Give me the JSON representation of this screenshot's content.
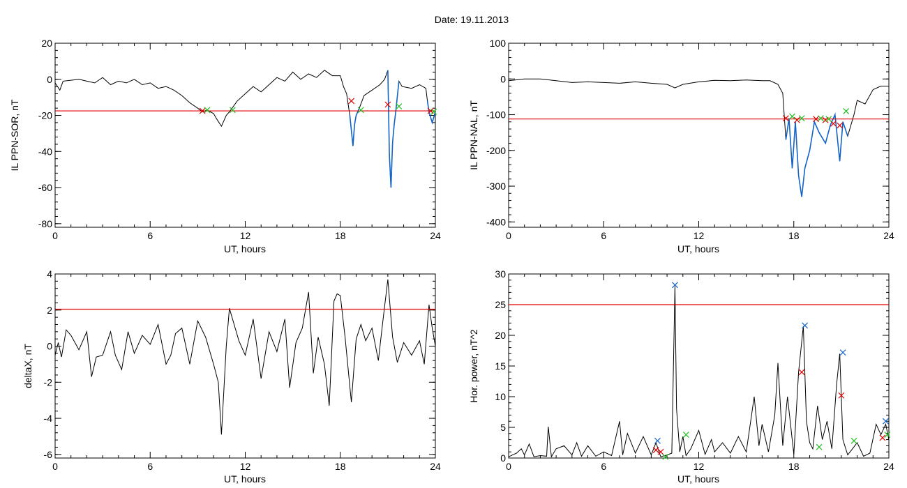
{
  "page": {
    "title": "Date:  19.11.2013"
  },
  "colors": {
    "trace": "#000000",
    "threshold": "#e00000",
    "highlight": "#1464c8",
    "marker_red": "#e00000",
    "marker_green": "#22c022",
    "marker_blue": "#1464c8"
  },
  "chart_data": [
    {
      "id": "sor",
      "type": "line",
      "xlabel": "UT, hours",
      "ylabel": "IL PPN-SOR, nT",
      "xlim": [
        0,
        24
      ],
      "ylim": [
        -82,
        20
      ],
      "xticks": [
        "0",
        "6",
        "12",
        "18",
        "24"
      ],
      "yticks": [
        "-80",
        "-60",
        "-40",
        "-20",
        "0",
        "20"
      ],
      "threshold": -17.5,
      "series": [
        {
          "x": [
            0,
            0.3,
            0.5,
            1,
            1.5,
            2,
            2.5,
            3,
            3.5,
            4,
            4.5,
            5,
            5.5,
            6,
            6.5,
            7,
            7.5,
            8,
            8.5,
            9,
            9.3,
            9.6,
            10,
            10.2,
            10.5,
            10.8,
            11,
            11.5,
            12,
            12.5,
            13,
            13.5,
            14,
            14.5,
            15,
            15.5,
            16,
            16.5,
            17,
            17.5,
            18,
            18.2,
            18.4,
            18.6,
            18.8,
            18.9,
            19,
            19.2,
            19.5,
            20,
            20.5,
            20.8,
            21,
            21.1,
            21.2,
            21.3,
            21.4,
            21.5,
            21.7,
            21.9,
            22.5,
            23,
            23.4,
            23.5,
            23.6,
            23.8,
            24
          ],
          "y": [
            -2,
            -6,
            -1,
            -0.5,
            0,
            -1,
            -2,
            1,
            -3,
            -1,
            -2,
            0,
            -3,
            -2,
            -5,
            -4,
            -6,
            -9,
            -13,
            -16,
            -18,
            -17,
            -19,
            -22,
            -26,
            -20,
            -18,
            -12,
            -8,
            -4,
            -7,
            -3,
            1,
            -1,
            4,
            0,
            3,
            1,
            5,
            2,
            2,
            -4,
            -8,
            -20,
            -37,
            -25,
            -20,
            -16,
            -9,
            -6,
            -3,
            0,
            5,
            -42,
            -60,
            -35,
            -25,
            -18,
            -1,
            -4,
            -5,
            -3,
            -5,
            -12,
            -18,
            -24,
            -18
          ]
        }
      ],
      "highlight_x_ranges": [
        [
          18.6,
          19.4
        ],
        [
          21.0,
          21.8
        ],
        [
          23.5,
          24
        ]
      ],
      "markers": [
        {
          "color": "red",
          "x": [
            9.3,
            18.7,
            21.0,
            23.7
          ],
          "y": [
            -17.5,
            -12,
            -14,
            -17.5
          ]
        },
        {
          "color": "green",
          "x": [
            9.6,
            11.2,
            19.3,
            21.7,
            23.9
          ],
          "y": [
            -17,
            -17,
            -17,
            -15,
            -18
          ]
        }
      ]
    },
    {
      "id": "nal",
      "type": "line",
      "xlabel": "UT, hours",
      "ylabel": "IL PPN-NAL, nT",
      "xlim": [
        0,
        24
      ],
      "ylim": [
        -415,
        100
      ],
      "xticks": [
        "0",
        "6",
        "12",
        "18",
        "24"
      ],
      "yticks": [
        "-400",
        "-300",
        "-200",
        "-100",
        "0",
        "100"
      ],
      "threshold": -112,
      "series": [
        {
          "x": [
            0,
            1,
            2,
            3,
            4,
            5,
            6,
            7,
            8,
            9,
            10,
            10.5,
            11,
            12,
            13,
            14,
            15,
            16,
            16.5,
            17,
            17.3,
            17.5,
            17.7,
            17.9,
            18.1,
            18.3,
            18.5,
            18.7,
            19,
            19.3,
            19.6,
            20,
            20.3,
            20.6,
            20.9,
            21.1,
            21.4,
            21.8,
            22,
            22.5,
            23,
            23.5,
            24
          ],
          "y": [
            -5,
            0,
            0,
            -5,
            -10,
            -8,
            -10,
            -12,
            -8,
            -12,
            -15,
            -25,
            -15,
            -8,
            -4,
            -5,
            -3,
            -5,
            -5,
            -15,
            -40,
            -170,
            -110,
            -250,
            -120,
            -270,
            -330,
            -250,
            -200,
            -120,
            -150,
            -180,
            -130,
            -100,
            -230,
            -120,
            -160,
            -100,
            -60,
            -70,
            -30,
            -20,
            -20
          ]
        }
      ],
      "highlight_x_ranges": [
        [
          17.4,
          21.6
        ]
      ],
      "markers": [
        {
          "color": "red",
          "x": [
            17.5,
            18.2,
            19.4,
            20.0,
            20.5,
            20.9
          ],
          "y": [
            -110,
            -115,
            -112,
            -115,
            -125,
            -130
          ]
        },
        {
          "color": "green",
          "x": [
            17.9,
            18.5,
            19.7,
            20.2,
            21.3
          ],
          "y": [
            -105,
            -110,
            -110,
            -112,
            -90
          ]
        }
      ]
    },
    {
      "id": "deltax",
      "type": "line",
      "xlabel": "UT, hours",
      "ylabel": "deltaX, nT",
      "xlim": [
        0,
        24
      ],
      "ylim": [
        -6.2,
        4
      ],
      "xticks": [
        "0",
        "6",
        "12",
        "18",
        "24"
      ],
      "yticks": [
        "-6",
        "-4",
        "-2",
        "0",
        "2",
        "4"
      ],
      "threshold": 2.05,
      "series": [
        {
          "x": [
            0,
            0.2,
            0.4,
            0.7,
            1,
            1.5,
            2,
            2.3,
            2.6,
            3,
            3.5,
            3.8,
            4.2,
            4.6,
            5,
            5.5,
            6,
            6.5,
            7,
            7.3,
            7.6,
            8,
            8.5,
            9,
            9.5,
            10,
            10.3,
            10.5,
            10.8,
            11,
            11.3,
            11.6,
            12,
            12.5,
            13,
            13.5,
            14,
            14.5,
            14.8,
            15.2,
            15.6,
            16,
            16.3,
            16.6,
            17,
            17.3,
            17.6,
            17.8,
            18,
            18.3,
            18.7,
            19,
            19.3,
            19.6,
            20,
            20.4,
            20.7,
            21,
            21.3,
            21.6,
            22,
            22.5,
            23,
            23.3,
            23.6,
            23.8,
            24
          ],
          "y": [
            -0.5,
            0.2,
            -0.6,
            0.9,
            0.6,
            -0.2,
            0.8,
            -1.7,
            -0.6,
            -0.5,
            0.8,
            -0.5,
            -1.3,
            0.8,
            -0.4,
            0.6,
            0.1,
            1.2,
            -1.0,
            -0.5,
            0.7,
            1.0,
            -1.0,
            1.4,
            0.5,
            -1.0,
            -2.0,
            -4.9,
            0.0,
            2.1,
            1.2,
            0.3,
            -0.5,
            1.5,
            -1.8,
            0.8,
            -0.3,
            1.5,
            -2.3,
            0.2,
            1.0,
            3.0,
            -1.5,
            0.5,
            -1.0,
            -3.3,
            2.5,
            2.9,
            2.8,
            0.5,
            -3.1,
            0.4,
            1.2,
            0.3,
            1.0,
            -0.8,
            1.5,
            3.7,
            0.5,
            -0.9,
            0.2,
            -0.5,
            0.3,
            -1.0,
            2.3,
            1.0,
            0.0
          ]
        }
      ],
      "markers": []
    },
    {
      "id": "power",
      "type": "line",
      "xlabel": "UT, hours",
      "ylabel": "Hor. power, nT^2",
      "xlim": [
        0,
        24
      ],
      "ylim": [
        0,
        30
      ],
      "xticks": [
        "0",
        "6",
        "12",
        "18",
        "24"
      ],
      "yticks": [
        "0",
        "5",
        "10",
        "15",
        "20",
        "25",
        "30"
      ],
      "threshold": 25,
      "series": [
        {
          "x": [
            0,
            0.5,
            0.8,
            1,
            1.3,
            1.6,
            2,
            2.4,
            2.5,
            2.7,
            3,
            3.5,
            4,
            4.3,
            4.6,
            5,
            5.5,
            6,
            6.5,
            7,
            7.2,
            7.5,
            8,
            8.5,
            9,
            9.3,
            9.6,
            10,
            10.3,
            10.5,
            10.6,
            10.8,
            11,
            11.2,
            11.5,
            12,
            12.4,
            12.8,
            13,
            13.5,
            14,
            14.5,
            15,
            15.5,
            15.8,
            16,
            16.4,
            16.8,
            17,
            17.3,
            17.6,
            18,
            18.3,
            18.6,
            18.8,
            19,
            19.2,
            19.5,
            19.8,
            20.1,
            20.4,
            20.7,
            20.9,
            21.1,
            21.4,
            21.7,
            22,
            22.4,
            22.8,
            23.2,
            23.5,
            23.8,
            24
          ],
          "y": [
            0.2,
            0.8,
            1.5,
            0.5,
            2.3,
            0.2,
            0.4,
            0.3,
            5.1,
            0.2,
            1.5,
            2.0,
            0.5,
            2.5,
            0.3,
            2.0,
            0.3,
            1.0,
            0.4,
            6.0,
            0.5,
            4.0,
            0.8,
            3.5,
            0.5,
            2.5,
            0.2,
            0.5,
            0.8,
            28.0,
            8.0,
            1.0,
            3.5,
            0.4,
            1.5,
            4.5,
            0.6,
            3.0,
            1.0,
            2.5,
            0.8,
            3.5,
            1.0,
            10.0,
            2.0,
            5.5,
            1.0,
            7.0,
            15.5,
            2.0,
            10.0,
            0.6,
            14.0,
            21.5,
            6.0,
            2.5,
            1.5,
            8.5,
            3.0,
            6.0,
            1.5,
            12.0,
            17.0,
            3.0,
            0.5,
            1.5,
            2.5,
            0.3,
            0.8,
            5.5,
            3.8,
            5.5,
            3.0
          ]
        }
      ],
      "markers": [
        {
          "color": "red",
          "x": [
            9.3,
            9.6,
            18.5,
            21.0,
            23.6
          ],
          "y": [
            1.3,
            1.0,
            14.0,
            10.2,
            3.3
          ]
        },
        {
          "color": "blue",
          "x": [
            9.4,
            10.5,
            18.7,
            21.1,
            23.8
          ],
          "y": [
            2.8,
            28.2,
            21.6,
            17.2,
            6.0
          ]
        },
        {
          "color": "green",
          "x": [
            9.9,
            11.2,
            19.6,
            21.8,
            23.9
          ],
          "y": [
            0.2,
            3.8,
            1.8,
            2.8,
            3.8
          ]
        }
      ]
    }
  ]
}
